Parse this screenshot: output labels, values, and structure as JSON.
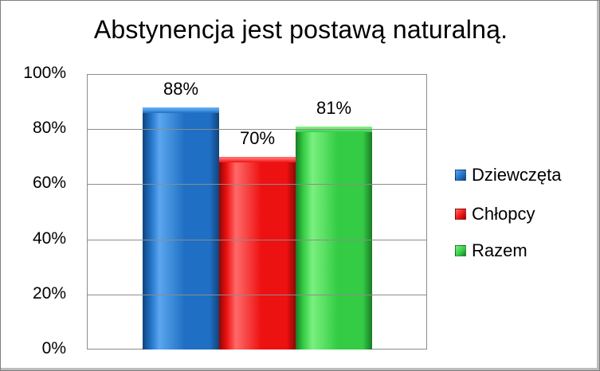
{
  "chart_data": {
    "type": "bar",
    "title": "Abstynencja jest postawą naturalną.",
    "categories": [
      "Dziewczęta",
      "Chłopcy",
      "Razem"
    ],
    "values": [
      88,
      70,
      81
    ],
    "value_labels": [
      "88%",
      "70%",
      "81%"
    ],
    "colors": [
      "#1f6fc4",
      "#ee1111",
      "#33cc44"
    ],
    "ylim": [
      0,
      100
    ],
    "yticks": [
      "100%",
      "80%",
      "60%",
      "40%",
      "20%",
      "0%"
    ],
    "ytick_values": [
      100,
      80,
      60,
      40,
      20,
      0
    ],
    "grid": true,
    "legend_position": "right",
    "legend": [
      "Dziewczęta",
      "Chłopcy",
      "Razem"
    ]
  }
}
